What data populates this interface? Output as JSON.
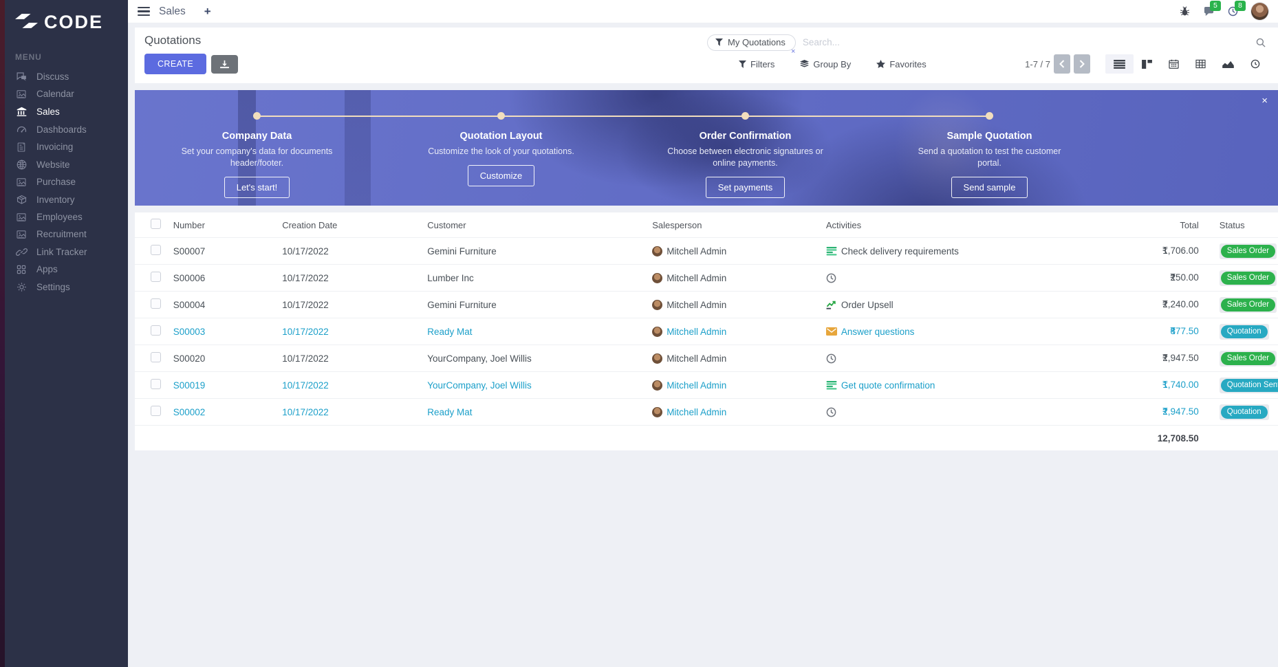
{
  "brand": {
    "name": "CODE"
  },
  "topbar": {
    "app_title": "Sales",
    "new_tab_label": "+",
    "icons": [
      "bug-icon",
      "messages-icon",
      "activity-clock-icon",
      "user-avatar"
    ],
    "badges": {
      "messages": "5",
      "activities": "8"
    }
  },
  "sidebar": {
    "menu_label": "MENU",
    "items": [
      {
        "label": "Discuss",
        "icon": "discuss",
        "active": false
      },
      {
        "label": "Calendar",
        "icon": "broken-image",
        "active": false
      },
      {
        "label": "Sales",
        "icon": "sales",
        "active": true
      },
      {
        "label": "Dashboards",
        "icon": "dashboards",
        "active": false
      },
      {
        "label": "Invoicing",
        "icon": "invoicing",
        "active": false
      },
      {
        "label": "Website",
        "icon": "website",
        "active": false
      },
      {
        "label": "Purchase",
        "icon": "broken-image",
        "active": false
      },
      {
        "label": "Inventory",
        "icon": "inventory",
        "active": false
      },
      {
        "label": "Employees",
        "icon": "broken-image",
        "active": false
      },
      {
        "label": "Recruitment",
        "icon": "broken-image",
        "active": false
      },
      {
        "label": "Link Tracker",
        "icon": "link-tracker",
        "active": false
      },
      {
        "label": "Apps",
        "icon": "apps",
        "active": false
      },
      {
        "label": "Settings",
        "icon": "settings",
        "active": false
      }
    ]
  },
  "control_panel": {
    "title": "Quotations",
    "create_label": "CREATE",
    "search": {
      "filter_tag": "My Quotations",
      "remove_tag_label": "×",
      "placeholder": "Search..."
    },
    "filters_label": "Filters",
    "groupby_label": "Group By",
    "favorites_label": "Favorites",
    "pager": "1-7 / 7",
    "views": [
      "list",
      "kanban",
      "calendar",
      "pivot",
      "graph",
      "activity"
    ],
    "active_view": "list"
  },
  "banner": {
    "close_label": "×",
    "steps": [
      {
        "title": "Company Data",
        "desc": "Set your company's data for documents header/footer.",
        "button": "Let's start!"
      },
      {
        "title": "Quotation Layout",
        "desc": "Customize the look of your quotations.",
        "button": "Customize"
      },
      {
        "title": "Order Confirmation",
        "desc": "Choose between electronic signatures or online payments.",
        "button": "Set payments"
      },
      {
        "title": "Sample Quotation",
        "desc": "Send a quotation to test the customer portal.",
        "button": "Send sample"
      }
    ]
  },
  "table": {
    "currency": "₹",
    "columns": [
      {
        "key": "number",
        "label": "Number"
      },
      {
        "key": "date",
        "label": "Creation Date"
      },
      {
        "key": "customer",
        "label": "Customer"
      },
      {
        "key": "sales",
        "label": "Salesperson"
      },
      {
        "key": "activity",
        "label": "Activities"
      },
      {
        "key": "total",
        "label": "Total"
      },
      {
        "key": "status",
        "label": "Status"
      }
    ],
    "rows": [
      {
        "number": "S00007",
        "date": "10/17/2022",
        "customer": "Gemini Furniture",
        "salesperson": "Mitchell Admin",
        "activity": {
          "icon": "tasks",
          "text": "Check delivery requirements"
        },
        "amount": "1,706.00",
        "status": "Sales Order",
        "status_type": "success",
        "highlighted": false
      },
      {
        "number": "S00006",
        "date": "10/17/2022",
        "customer": "Lumber Inc",
        "salesperson": "Mitchell Admin",
        "activity": {
          "icon": "clock",
          "text": ""
        },
        "amount": "250.00",
        "status": "Sales Order",
        "status_type": "success",
        "highlighted": false
      },
      {
        "number": "S00004",
        "date": "10/17/2022",
        "customer": "Gemini Furniture",
        "salesperson": "Mitchell Admin",
        "activity": {
          "icon": "chart",
          "text": "Order Upsell"
        },
        "amount": "2,240.00",
        "status": "Sales Order",
        "status_type": "success",
        "highlighted": false
      },
      {
        "number": "S00003",
        "date": "10/17/2022",
        "customer": "Ready Mat",
        "salesperson": "Mitchell Admin",
        "activity": {
          "icon": "envelope",
          "text": "Answer questions"
        },
        "amount": "877.50",
        "status": "Quotation",
        "status_type": "info",
        "highlighted": true
      },
      {
        "number": "S00020",
        "date": "10/17/2022",
        "customer": "YourCompany, Joel Willis",
        "salesperson": "Mitchell Admin",
        "activity": {
          "icon": "clock",
          "text": ""
        },
        "amount": "2,947.50",
        "status": "Sales Order",
        "status_type": "success",
        "highlighted": false
      },
      {
        "number": "S00019",
        "date": "10/17/2022",
        "customer": "YourCompany, Joel Willis",
        "salesperson": "Mitchell Admin",
        "activity": {
          "icon": "tasks",
          "text": "Get quote confirmation"
        },
        "amount": "1,740.00",
        "status": "Quotation Sent",
        "status_type": "info",
        "highlighted": true
      },
      {
        "number": "S00002",
        "date": "10/17/2022",
        "customer": "Ready Mat",
        "salesperson": "Mitchell Admin",
        "activity": {
          "icon": "clock",
          "text": ""
        },
        "amount": "2,947.50",
        "status": "Quotation",
        "status_type": "info",
        "highlighted": true
      }
    ],
    "footer_total": "12,708.50"
  },
  "colors": {
    "sidebar_bg": "#2c3147",
    "accent": "#5c6be0",
    "banner_overlay": "#5e6ac9",
    "timeline": "#f2debd",
    "status_success": "#2cb14c",
    "status_info": "#27a9c2",
    "highlight_row": "#1b9fc9",
    "badge_count": "#2ab34c"
  }
}
